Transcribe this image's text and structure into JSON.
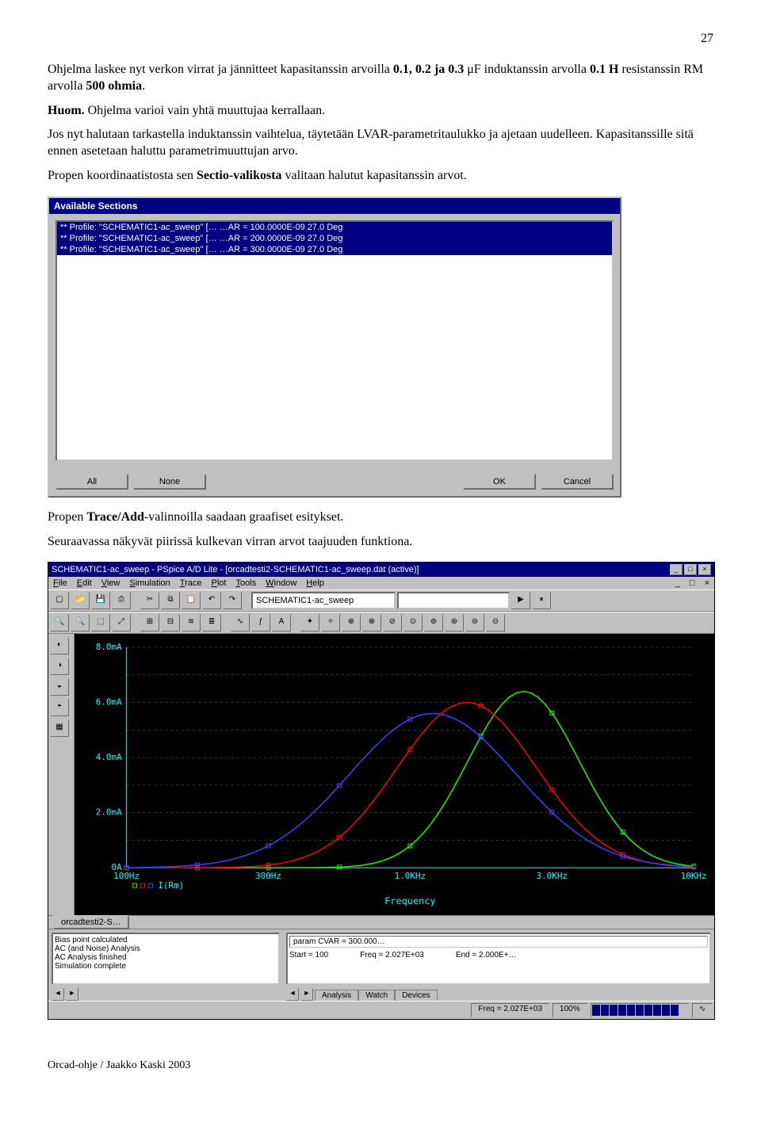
{
  "page_number": "27",
  "text": {
    "p1_a": "Ohjelma laskee nyt verkon virrat ja jännitteet kapasitanssin arvoilla ",
    "p1_b": "0.1, 0.2 ja 0.3",
    "p1_c": " μF induktanssin arvolla ",
    "p1_d": "0.1 H",
    "p1_e": " resistanssin RM arvolla ",
    "p1_f": "500 ohmia",
    "p1_g": ".",
    "huom": "Huom.",
    "p2_a": " Ohjelma varioi vain yhtä muuttujaa kerrallaan.",
    "p3": "Jos nyt halutaan tarkastella induktanssin vaihtelua, täytetään LVAR-parametritaulukko ja ajetaan uudelleen. Kapasitanssille sitä ennen asetetaan haluttu parametrimuuttujan arvo.",
    "p4_a": "Propen koordinaatistosta sen ",
    "p4_b": "Sectio-valikosta",
    "p4_c": " valitaan halutut kapasitanssin arvot.",
    "p5_a": "Propen ",
    "p5_b": "Trace/Add",
    "p5_c": "-valinnoilla saadaan graafiset esitykset.",
    "p6": "Seuraavassa näkyvät piirissä kulkevan virran arvot taajuuden funktiona."
  },
  "dialog": {
    "title": "Available Sections",
    "items": [
      "** Profile: ''SCHEMATIC1-ac_sweep''  [… …AR = 100.0000E-09   27.0 Deg",
      "** Profile: ''SCHEMATIC1-ac_sweep''  [… …AR = 200.0000E-09   27.0 Deg",
      "** Profile: ''SCHEMATIC1-ac_sweep''  [… …AR = 300.0000E-09   27.0 Deg"
    ],
    "btn_all": "All",
    "btn_none": "None",
    "btn_ok": "OK",
    "btn_cancel": "Cancel"
  },
  "app": {
    "title": "SCHEMATIC1-ac_sweep - PSpice A/D Lite  - [orcadtesti2-SCHEMATIC1-ac_sweep.dat (active)]",
    "menu": [
      "File",
      "Edit",
      "View",
      "Simulation",
      "Trace",
      "Plot",
      "Tools",
      "Window",
      "Help"
    ],
    "profile_name": "SCHEMATIC1-ac_sweep",
    "chart": {
      "bg": "#000000",
      "grid_color": "#666666",
      "axis_color": "#00ffff",
      "series_colors": [
        "#00ff00",
        "#ff0000",
        "#4040ff"
      ],
      "marker": "square",
      "x_ticks": [
        "100Hz",
        "300Hz",
        "1.0KHz",
        "3.0KHz",
        "10KHz"
      ],
      "y_ticks": [
        "0A",
        "2.0mA",
        "4.0mA",
        "6.0mA",
        "8.0mA"
      ],
      "x_label": "Frequency",
      "legend": "I(Rm)",
      "series": [
        {
          "peak_x": 0.7,
          "peak_y": 0.8,
          "width": 0.24
        },
        {
          "peak_x": 0.6,
          "peak_y": 0.75,
          "width": 0.3
        },
        {
          "peak_x": 0.54,
          "peak_y": 0.7,
          "width": 0.36
        }
      ]
    },
    "doc_tab": "orcadtesti2-S…",
    "log": [
      "Bias point calculated",
      "AC (and Noise) Analysis",
      "AC Analysis finished",
      "Simulation complete"
    ],
    "param_box": "param CVAR = 300.000…",
    "param_row": {
      "start": "Start = 100",
      "freq": "Freq = 2.027E+03",
      "end": "End = 2.000E+…"
    },
    "tabs": [
      "Analysis",
      "Watch",
      "Devices"
    ],
    "status_freq": "Freq = 2.027E+03",
    "status_pct": "100%"
  },
  "footer": "Orcad-ohje / Jaakko Kaski 2003"
}
